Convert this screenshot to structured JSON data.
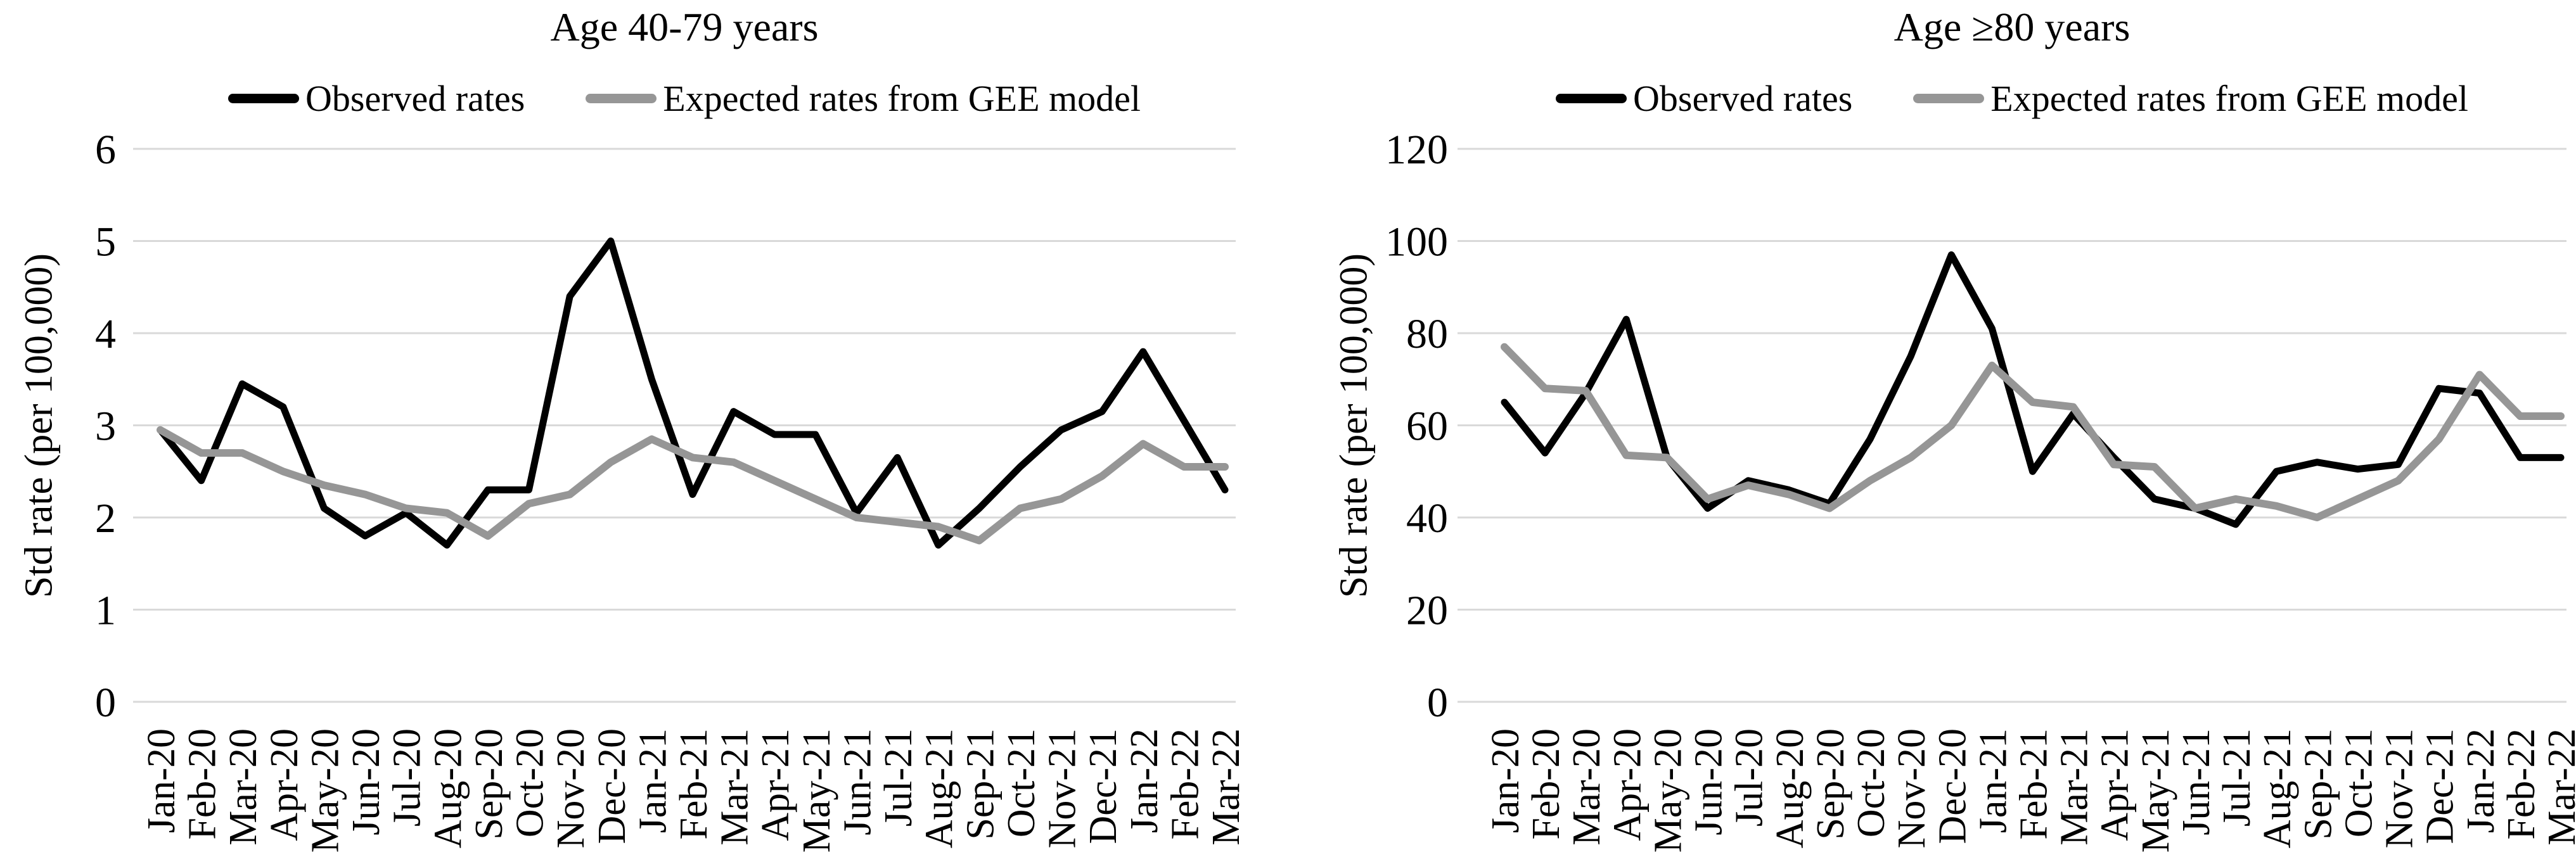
{
  "legend": {
    "observed_label": "Observed rates",
    "expected_label": "Expected rates from GEE model"
  },
  "colors": {
    "observed": "#000000",
    "expected": "#969696",
    "gridline": "#d9d9d9",
    "text": "#000000",
    "background": "#ffffff"
  },
  "chart_data": [
    {
      "type": "line",
      "title": "Age 40-79 years",
      "xlabel": "",
      "ylabel": "Std rate (per 100,000)",
      "ylim": [
        0,
        6
      ],
      "yticks": [
        0,
        1,
        2,
        3,
        4,
        5,
        6
      ],
      "grid": true,
      "legend_position": "top",
      "categories": [
        "Jan-20",
        "Feb-20",
        "Mar-20",
        "Apr-20",
        "May-20",
        "Jun-20",
        "Jul-20",
        "Aug-20",
        "Sep-20",
        "Oct-20",
        "Nov-20",
        "Dec-20",
        "Jan-21",
        "Feb-21",
        "Mar-21",
        "Apr-21",
        "May-21",
        "Jun-21",
        "Jul-21",
        "Aug-21",
        "Sep-21",
        "Oct-21",
        "Nov-21",
        "Dec-21",
        "Jan-22",
        "Feb-22",
        "Mar-22"
      ],
      "series": [
        {
          "name": "Observed rates",
          "color": "#000000",
          "values": [
            2.95,
            2.4,
            3.45,
            3.2,
            2.1,
            1.8,
            2.05,
            1.7,
            2.3,
            2.3,
            4.4,
            5.0,
            3.5,
            2.25,
            3.15,
            2.9,
            2.9,
            2.05,
            2.65,
            1.7,
            2.1,
            2.55,
            2.95,
            3.15,
            3.8,
            3.05,
            2.3
          ]
        },
        {
          "name": "Expected rates from GEE model",
          "color": "#969696",
          "values": [
            2.95,
            2.7,
            2.7,
            2.5,
            2.35,
            2.25,
            2.1,
            2.05,
            1.8,
            2.15,
            2.25,
            2.6,
            2.85,
            2.65,
            2.6,
            2.4,
            2.2,
            2.0,
            1.95,
            1.9,
            1.75,
            2.1,
            2.2,
            2.45,
            2.8,
            2.55,
            2.55
          ]
        }
      ]
    },
    {
      "type": "line",
      "title": "Age ≥80 years",
      "xlabel": "",
      "ylabel": "Std rate (per 100,000)",
      "ylim": [
        0,
        120
      ],
      "yticks": [
        0,
        20,
        40,
        60,
        80,
        100,
        120
      ],
      "grid": true,
      "legend_position": "top",
      "categories": [
        "Jan-20",
        "Feb-20",
        "Mar-20",
        "Apr-20",
        "May-20",
        "Jun-20",
        "Jul-20",
        "Aug-20",
        "Sep-20",
        "Oct-20",
        "Nov-20",
        "Dec-20",
        "Jan-21",
        "Feb-21",
        "Mar-21",
        "Apr-21",
        "May-21",
        "Jun-21",
        "Jul-21",
        "Aug-21",
        "Sep-21",
        "Oct-21",
        "Nov-21",
        "Dec-21",
        "Jan-22",
        "Feb-22",
        "Mar-22"
      ],
      "series": [
        {
          "name": "Observed rates",
          "color": "#000000",
          "values": [
            65,
            54,
            67,
            83,
            53,
            42,
            48,
            46,
            43,
            57,
            75,
            97,
            81,
            50,
            62.5,
            53,
            44,
            42,
            38.5,
            50,
            52,
            50.5,
            51.5,
            68,
            67,
            53,
            53
          ]
        },
        {
          "name": "Expected rates from GEE model",
          "color": "#969696",
          "values": [
            77,
            68,
            67.5,
            53.5,
            53,
            44,
            47,
            45,
            42,
            48,
            53,
            60,
            73,
            65,
            64,
            51.5,
            51,
            42,
            44,
            42.5,
            40,
            44,
            48,
            57,
            71,
            62,
            62
          ]
        }
      ]
    }
  ]
}
